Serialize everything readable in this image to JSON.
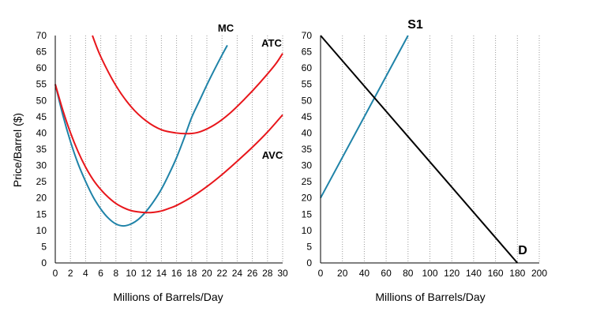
{
  "colors": {
    "red": "#e8161b",
    "teal": "#1f83a8",
    "black": "#000000",
    "grid": "#9a9a9a"
  },
  "chart_data": [
    {
      "type": "line",
      "xlabel": "Millions of Barrels/Day",
      "ylabel": "Price/Barrel ($)",
      "xlim": [
        0,
        30
      ],
      "ylim": [
        0,
        70
      ],
      "xticks": [
        0,
        2,
        4,
        6,
        8,
        10,
        12,
        14,
        16,
        18,
        20,
        22,
        24,
        26,
        28,
        30
      ],
      "yticks": [
        0,
        5,
        10,
        15,
        20,
        25,
        30,
        35,
        40,
        45,
        50,
        55,
        60,
        65,
        70
      ],
      "grid": "vertical dotted lines at x ticks",
      "series": [
        {
          "name": "MC",
          "color": "#1f83a8",
          "x": [
            0,
            1,
            2,
            3,
            4,
            5,
            6,
            7,
            8,
            9,
            10,
            11,
            12,
            13,
            14,
            15,
            16,
            17,
            18,
            19,
            20,
            21,
            22,
            22.7
          ],
          "y": [
            55,
            45.5,
            37.4,
            30.6,
            25.1,
            20.3,
            16.6,
            13.8,
            12.0,
            11.4,
            12.0,
            13.5,
            15.9,
            19.0,
            22.7,
            27.3,
            32.4,
            38.4,
            44.8,
            49.8,
            54.8,
            59.5,
            64.0,
            67.0
          ]
        },
        {
          "name": "ATC",
          "color": "#e8161b",
          "x": [
            4.9,
            6,
            8,
            10,
            12,
            14,
            16,
            17.5,
            19,
            21,
            23,
            25,
            27,
            29,
            30
          ],
          "y": [
            70,
            63.5,
            54.6,
            48.1,
            43.7,
            41.0,
            40.0,
            39.8,
            40.3,
            42.5,
            46.0,
            50.5,
            55.5,
            61.0,
            64.5
          ]
        },
        {
          "name": "AVC",
          "color": "#e8161b",
          "x": [
            0,
            1,
            2,
            3,
            4,
            5,
            6,
            7,
            8,
            9,
            10,
            11,
            12,
            13,
            14,
            15,
            16,
            18,
            20,
            22,
            24,
            26,
            28,
            30
          ],
          "y": [
            55,
            47.0,
            40.1,
            34.3,
            29.5,
            25.6,
            22.6,
            20.2,
            18.3,
            17.0,
            16.1,
            15.7,
            15.5,
            15.6,
            16.0,
            16.8,
            17.7,
            20.3,
            23.5,
            27.2,
            31.3,
            35.6,
            40.3,
            45.6
          ]
        }
      ],
      "annotations": [
        "MC",
        "ATC",
        "AVC"
      ]
    },
    {
      "type": "line",
      "xlabel": "Millions of Barrels/Day",
      "ylabel": "",
      "xlim": [
        0,
        200
      ],
      "ylim": [
        0,
        70
      ],
      "xticks": [
        0,
        20,
        40,
        60,
        80,
        100,
        120,
        140,
        160,
        180,
        200
      ],
      "yticks": [
        0,
        5,
        10,
        15,
        20,
        25,
        30,
        35,
        40,
        45,
        50,
        55,
        60,
        65,
        70
      ],
      "grid": "vertical dotted lines at x ticks",
      "series": [
        {
          "name": "S1",
          "color": "#1f83a8",
          "x": [
            0,
            80
          ],
          "y": [
            20,
            70
          ]
        },
        {
          "name": "D",
          "color": "#000000",
          "x": [
            0,
            180
          ],
          "y": [
            70,
            0
          ]
        }
      ],
      "annotations": [
        "S1",
        "D"
      ]
    }
  ]
}
